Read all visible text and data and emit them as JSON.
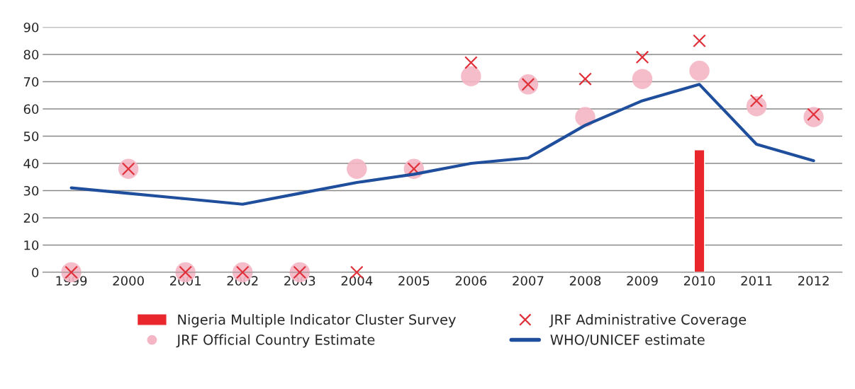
{
  "chart_data": {
    "type": "line",
    "categories": [
      "1999",
      "2000",
      "2001",
      "2002",
      "2003",
      "2004",
      "2005",
      "2006",
      "2007",
      "2008",
      "2009",
      "2010",
      "2011",
      "2012"
    ],
    "series": [
      {
        "name": "Nigeria Multiple Indicator Cluster Survey",
        "type": "bar",
        "color": "#e8262c",
        "values": [
          null,
          null,
          null,
          null,
          null,
          null,
          null,
          null,
          null,
          null,
          null,
          45,
          null,
          null
        ]
      },
      {
        "name": "JRF Administrative Coverage",
        "type": "scatter",
        "marker": "cross",
        "color": "#e0303a",
        "values": [
          0,
          38,
          0,
          0,
          0,
          0,
          38,
          77,
          69,
          71,
          79,
          85,
          63,
          58
        ]
      },
      {
        "name": "JRF Official Country Estimate",
        "type": "scatter",
        "marker": "circle",
        "color": "#f4b6c4",
        "values": [
          0,
          38,
          0,
          0,
          0,
          38,
          38,
          72,
          69,
          57,
          71,
          74,
          61,
          57
        ]
      },
      {
        "name": "WHO/UNICEF estimate",
        "marker": "none",
        "color": "#1f4e9c",
        "values": [
          31,
          29,
          27,
          25,
          29,
          33,
          36,
          40,
          42,
          54,
          63,
          69,
          47,
          41
        ]
      }
    ],
    "ylim": [
      0,
      90
    ],
    "yticks": [
      0,
      10,
      20,
      30,
      40,
      50,
      60,
      70,
      80,
      90
    ],
    "grid": "y",
    "legend": "bottom"
  }
}
